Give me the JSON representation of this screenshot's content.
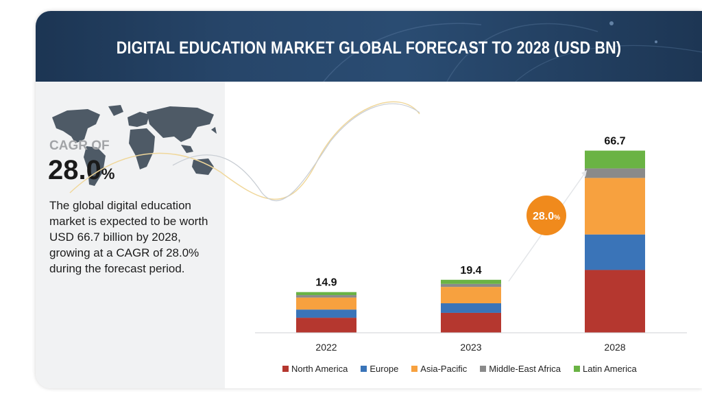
{
  "banner": {
    "title": "DIGITAL EDUCATION MARKET GLOBAL FORECAST TO 2028 (USD BN)"
  },
  "summary": {
    "cagr_label": "CAGR OF",
    "cagr_value": "28.0",
    "cagr_unit": "%",
    "description": "The global digital education market is expected to be worth USD 66.7 billion by 2028, growing at a CAGR of 28.0% during the forecast period."
  },
  "chart_data": {
    "type": "bar",
    "stacked": true,
    "title": "DIGITAL EDUCATION MARKET GLOBAL FORECAST TO 2028 (USD BN)",
    "categories": [
      "2022",
      "2023",
      "2028"
    ],
    "totals": [
      "14.9",
      "19.4",
      "66.7"
    ],
    "series": [
      {
        "name": "North America",
        "color": "#b5372f",
        "values": [
          5.5,
          7.3,
          23.0
        ]
      },
      {
        "name": "Europe",
        "color": "#3a74b8",
        "values": [
          3.0,
          3.5,
          13.0
        ]
      },
      {
        "name": "Asia-Pacific",
        "color": "#f7a13f",
        "values": [
          4.4,
          6.0,
          20.7
        ]
      },
      {
        "name": "Middle-East Africa",
        "color": "#8a8a8a",
        "values": [
          0.9,
          1.1,
          3.5
        ]
      },
      {
        "name": "Latin America",
        "color": "#6ab344",
        "values": [
          1.1,
          1.5,
          6.5
        ]
      }
    ],
    "cagr_badge": {
      "value": "28.0",
      "unit": "%",
      "color": "#f08a1c"
    },
    "legend_position": "bottom",
    "grid": false
  }
}
